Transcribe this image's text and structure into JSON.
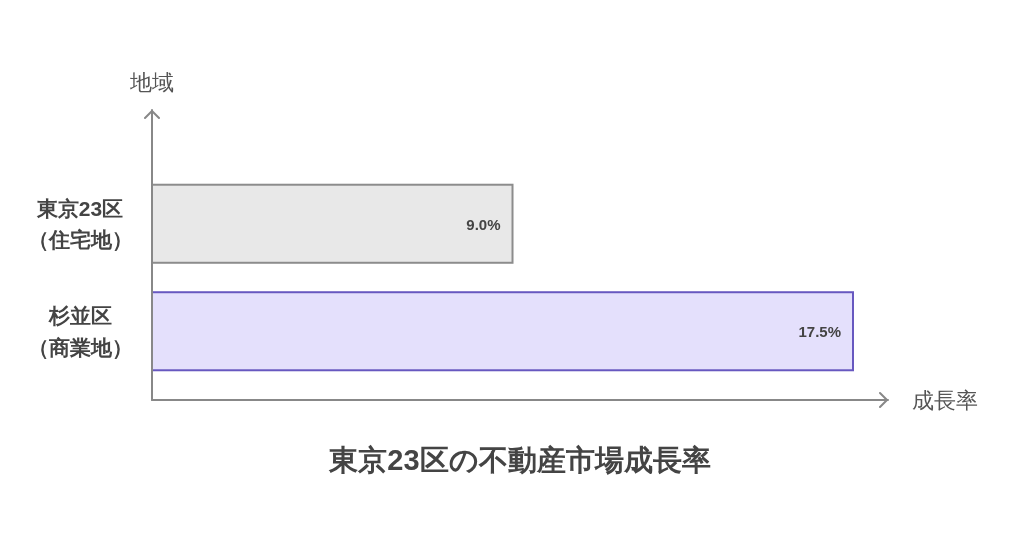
{
  "chart_data": {
    "type": "bar",
    "orientation": "horizontal",
    "title": "東京23区の不動産市場成長率",
    "xlabel": "成長率",
    "ylabel": "地域",
    "categories": [
      "東京23区（住宅地）",
      "杉並区（商業地）"
    ],
    "values": [
      9.0,
      17.5
    ],
    "colors": [
      "#e8e8e8",
      "#e4e0fc"
    ],
    "value_labels": [
      "9.0%",
      "17.5%"
    ],
    "tick_labels": "y"
  }
}
